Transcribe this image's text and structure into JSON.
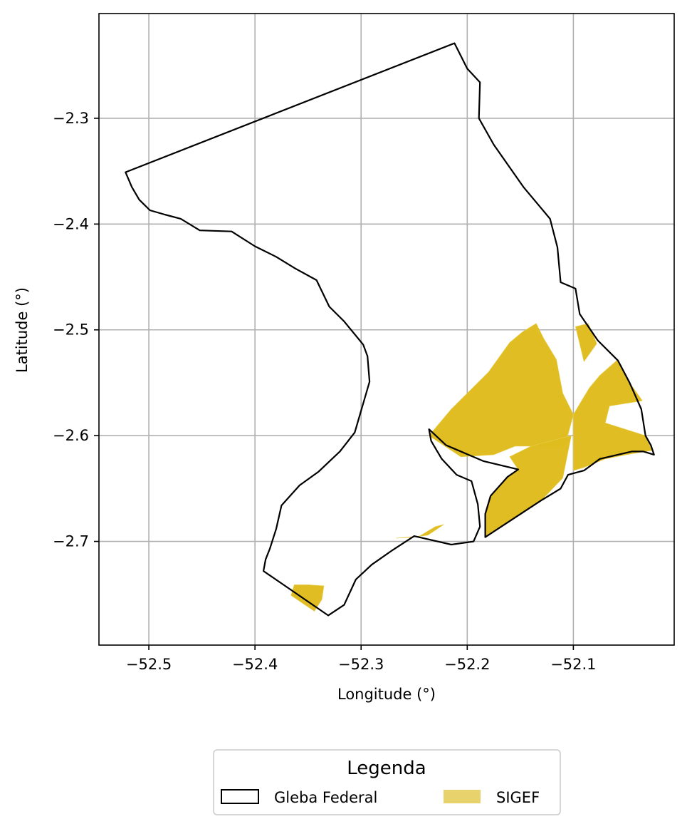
{
  "chart_data": {
    "type": "map",
    "xlabel": "Longitude (°)",
    "ylabel": "Latitude (°)",
    "xlim": [
      -52.547,
      -52.005
    ],
    "ylim": [
      -2.798,
      -2.201
    ],
    "grid": true,
    "x_ticks": [
      {
        "value": -52.5,
        "label": "−52.5"
      },
      {
        "value": -52.4,
        "label": "−52.4"
      },
      {
        "value": -52.3,
        "label": "−52.3"
      },
      {
        "value": -52.2,
        "label": "−52.2"
      },
      {
        "value": -52.1,
        "label": "−52.1"
      }
    ],
    "y_ticks": [
      {
        "value": -2.3,
        "label": "−2.3"
      },
      {
        "value": -2.4,
        "label": "−2.4"
      },
      {
        "value": -2.5,
        "label": "−2.5"
      },
      {
        "value": -2.6,
        "label": "−2.6"
      },
      {
        "value": -2.7,
        "label": "−2.7"
      }
    ],
    "legend": {
      "title": "Legenda",
      "position": "bottom-center",
      "entries": [
        {
          "label": "Gleba Federal",
          "style": "outline",
          "color": "#000000"
        },
        {
          "label": "SIGEF",
          "style": "fill",
          "color": "#e8d26b"
        }
      ]
    },
    "layers": {
      "gleba_outline": {
        "color": "#000000",
        "coords": [
          [
            -52.522,
            -2.351
          ],
          [
            -52.212,
            -2.229
          ],
          [
            -52.2,
            -2.253
          ],
          [
            -52.188,
            -2.266
          ],
          [
            -52.189,
            -2.3
          ],
          [
            -52.175,
            -2.325
          ],
          [
            -52.147,
            -2.365
          ],
          [
            -52.122,
            -2.395
          ],
          [
            -52.115,
            -2.422
          ],
          [
            -52.112,
            -2.455
          ],
          [
            -52.098,
            -2.461
          ],
          [
            -52.094,
            -2.485
          ],
          [
            -52.077,
            -2.51
          ],
          [
            -52.058,
            -2.529
          ],
          [
            -52.047,
            -2.55
          ],
          [
            -52.036,
            -2.575
          ],
          [
            -52.032,
            -2.6
          ],
          [
            -52.027,
            -2.609
          ],
          [
            -52.024,
            -2.618
          ],
          [
            -52.034,
            -2.615
          ],
          [
            -52.045,
            -2.615
          ],
          [
            -52.075,
            -2.622
          ],
          [
            -52.09,
            -2.633
          ],
          [
            -52.105,
            -2.637
          ],
          [
            -52.112,
            -2.65
          ],
          [
            -52.13,
            -2.661
          ],
          [
            -52.183,
            -2.696
          ],
          [
            -52.183,
            -2.674
          ],
          [
            -52.178,
            -2.657
          ],
          [
            -52.162,
            -2.639
          ],
          [
            -52.152,
            -2.632
          ],
          [
            -52.185,
            -2.624
          ],
          [
            -52.22,
            -2.609
          ],
          [
            -52.236,
            -2.594
          ],
          [
            -52.234,
            -2.605
          ],
          [
            -52.224,
            -2.622
          ],
          [
            -52.21,
            -2.637
          ],
          [
            -52.196,
            -2.643
          ],
          [
            -52.19,
            -2.665
          ],
          [
            -52.188,
            -2.686
          ],
          [
            -52.194,
            -2.7
          ],
          [
            -52.215,
            -2.703
          ],
          [
            -52.25,
            -2.695
          ],
          [
            -52.27,
            -2.708
          ],
          [
            -52.29,
            -2.722
          ],
          [
            -52.305,
            -2.736
          ],
          [
            -52.316,
            -2.76
          ],
          [
            -52.331,
            -2.77
          ],
          [
            -52.392,
            -2.728
          ],
          [
            -52.39,
            -2.717
          ],
          [
            -52.386,
            -2.707
          ],
          [
            -52.38,
            -2.688
          ],
          [
            -52.375,
            -2.666
          ],
          [
            -52.358,
            -2.647
          ],
          [
            -52.34,
            -2.634
          ],
          [
            -52.32,
            -2.615
          ],
          [
            -52.306,
            -2.597
          ],
          [
            -52.299,
            -2.573
          ],
          [
            -52.292,
            -2.549
          ],
          [
            -52.294,
            -2.525
          ],
          [
            -52.298,
            -2.514
          ],
          [
            -52.316,
            -2.492
          ],
          [
            -52.33,
            -2.478
          ],
          [
            -52.342,
            -2.453
          ],
          [
            -52.362,
            -2.442
          ],
          [
            -52.38,
            -2.431
          ],
          [
            -52.4,
            -2.421
          ],
          [
            -52.422,
            -2.407
          ],
          [
            -52.452,
            -2.406
          ],
          [
            -52.47,
            -2.395
          ],
          [
            -52.485,
            -2.391
          ],
          [
            -52.499,
            -2.387
          ],
          [
            -52.509,
            -2.377
          ],
          [
            -52.516,
            -2.365
          ],
          [
            -52.522,
            -2.351
          ]
        ]
      },
      "sigef_polygons": {
        "color": "#dfbd1f",
        "opacity": 0.98,
        "parcels": [
          [
            [
              -52.236,
              -2.6
            ],
            [
              -52.215,
              -2.575
            ],
            [
              -52.18,
              -2.54
            ],
            [
              -52.16,
              -2.512
            ],
            [
              -52.148,
              -2.502
            ],
            [
              -52.135,
              -2.494
            ],
            [
              -52.128,
              -2.508
            ],
            [
              -52.116,
              -2.528
            ],
            [
              -52.11,
              -2.56
            ],
            [
              -52.1,
              -2.58
            ],
            [
              -52.108,
              -2.61
            ],
            [
              -52.155,
              -2.61
            ],
            [
              -52.175,
              -2.618
            ],
            [
              -52.206,
              -2.62
            ]
          ],
          [
            [
              -52.1,
              -2.58
            ],
            [
              -52.085,
              -2.555
            ],
            [
              -52.075,
              -2.543
            ],
            [
              -52.058,
              -2.528
            ],
            [
              -52.047,
              -2.55
            ],
            [
              -52.035,
              -2.567
            ],
            [
              -52.066,
              -2.572
            ],
            [
              -52.07,
              -2.588
            ],
            [
              -52.032,
              -2.6
            ],
            [
              -52.026,
              -2.614
            ],
            [
              -52.05,
              -2.618
            ],
            [
              -52.07,
              -2.622
            ],
            [
              -52.09,
              -2.63
            ],
            [
              -52.1,
              -2.633
            ]
          ],
          [
            [
              -52.098,
              -2.497
            ],
            [
              -52.086,
              -2.494
            ],
            [
              -52.078,
              -2.513
            ],
            [
              -52.09,
              -2.53
            ]
          ],
          [
            [
              -52.102,
              -2.6
            ],
            [
              -52.11,
              -2.64
            ],
            [
              -52.13,
              -2.661
            ],
            [
              -52.152,
              -2.675
            ],
            [
              -52.183,
              -2.695
            ],
            [
              -52.183,
              -2.674
            ],
            [
              -52.178,
              -2.657
            ],
            [
              -52.162,
              -2.639
            ],
            [
              -52.152,
              -2.632
            ],
            [
              -52.16,
              -2.62
            ],
            [
              -52.14,
              -2.61
            ]
          ],
          [
            [
              -52.267,
              -2.697
            ],
            [
              -52.245,
              -2.695
            ],
            [
              -52.23,
              -2.686
            ],
            [
              -52.222,
              -2.684
            ],
            [
              -52.237,
              -2.694
            ],
            [
              -52.25,
              -2.696
            ]
          ],
          [
            [
              -52.363,
              -2.741
            ],
            [
              -52.35,
              -2.741
            ],
            [
              -52.335,
              -2.742
            ],
            [
              -52.337,
              -2.755
            ],
            [
              -52.344,
              -2.766
            ],
            [
              -52.366,
              -2.751
            ]
          ]
        ]
      }
    }
  }
}
